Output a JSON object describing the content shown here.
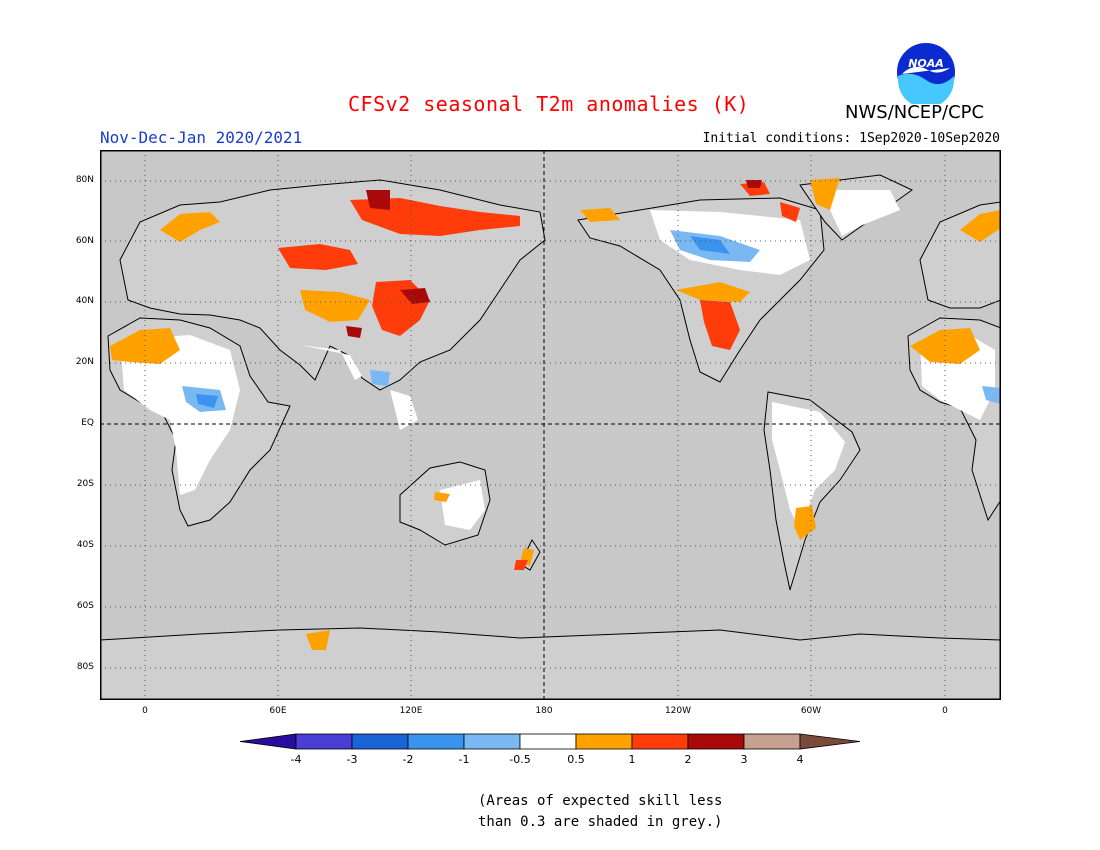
{
  "title": "CFSv2 seasonal T2m anomalies (K)",
  "period": "Nov-Dec-Jan 2020/2021",
  "initial_conditions": "Initial conditions: 1Sep2020-10Sep2020",
  "agency": "NWS/NCEP/CPC",
  "logo_text": "NOAA",
  "lat_labels": [
    "80N",
    "60N",
    "40N",
    "20N",
    "EQ",
    "20S",
    "40S",
    "60S",
    "80S"
  ],
  "lon_labels": [
    "0",
    "60E",
    "120E",
    "180",
    "120W",
    "60W",
    "0"
  ],
  "colorbar": {
    "ticks": [
      "-4",
      "-3",
      "-2",
      "-1",
      "-0.5",
      "0.5",
      "1",
      "2",
      "3",
      "4"
    ],
    "colors": [
      "#2a0c9e",
      "#4a3ed4",
      "#1a64d6",
      "#3a94ee",
      "#7ab8f4",
      "#ffffff",
      "#ffa200",
      "#ff3c0a",
      "#a80a0a",
      "#c8a090",
      "#7a4a3a"
    ]
  },
  "note_line1": "(Areas of expected skill less",
  "note_line2": "than 0.3 are shaded in grey.)",
  "colors": {
    "ocean_grey": "#c8c8c8",
    "land_white": "#ffffff",
    "title_red": "#ff0000",
    "period_blue": "#1a3ccf"
  }
}
